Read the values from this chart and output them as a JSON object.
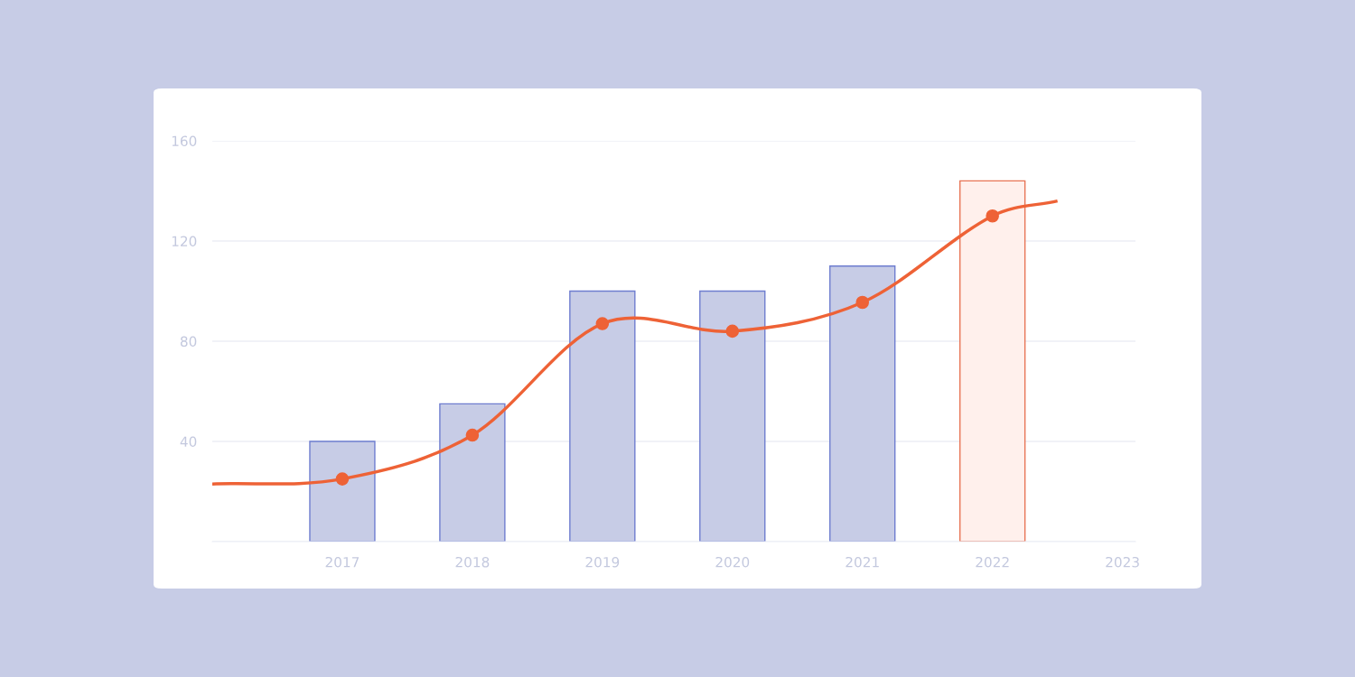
{
  "chart_data": {
    "type": "bar",
    "xlim": [
      2016,
      2023.1
    ],
    "xticks": [
      2017,
      2018,
      2019,
      2020,
      2021,
      2022,
      2023
    ],
    "ylim": [
      0,
      160
    ],
    "yticks": [
      {
        "value": 0,
        "label": null
      },
      40,
      80,
      120,
      160
    ],
    "grid": "y",
    "series": [
      {
        "x": [
          2017,
          2018,
          2019,
          2020,
          2021,
          2022
        ],
        "values": [
          40,
          55,
          100,
          100,
          110,
          144
        ],
        "colors": [
          "#c7cce6",
          "#c7cce6",
          "#c7cce6",
          "#c7cce6",
          "#c7cce6",
          "#fff0ec"
        ]
      },
      {
        "type": "line",
        "color": "#ee6236",
        "x": [
          2016,
          2017,
          2018,
          2019,
          2020,
          2021,
          2022,
          2022.5
        ],
        "values": [
          23,
          25,
          42.5,
          87,
          84,
          95.5,
          130,
          136
        ],
        "marker": "none"
      },
      {
        "type": "scatter",
        "color": "#ee6236",
        "x": [
          2017,
          2018,
          2019,
          2020,
          2021,
          2022
        ],
        "values": [
          25,
          42.5,
          87,
          84,
          95.5,
          130
        ],
        "marker": "circle"
      }
    ]
  }
}
